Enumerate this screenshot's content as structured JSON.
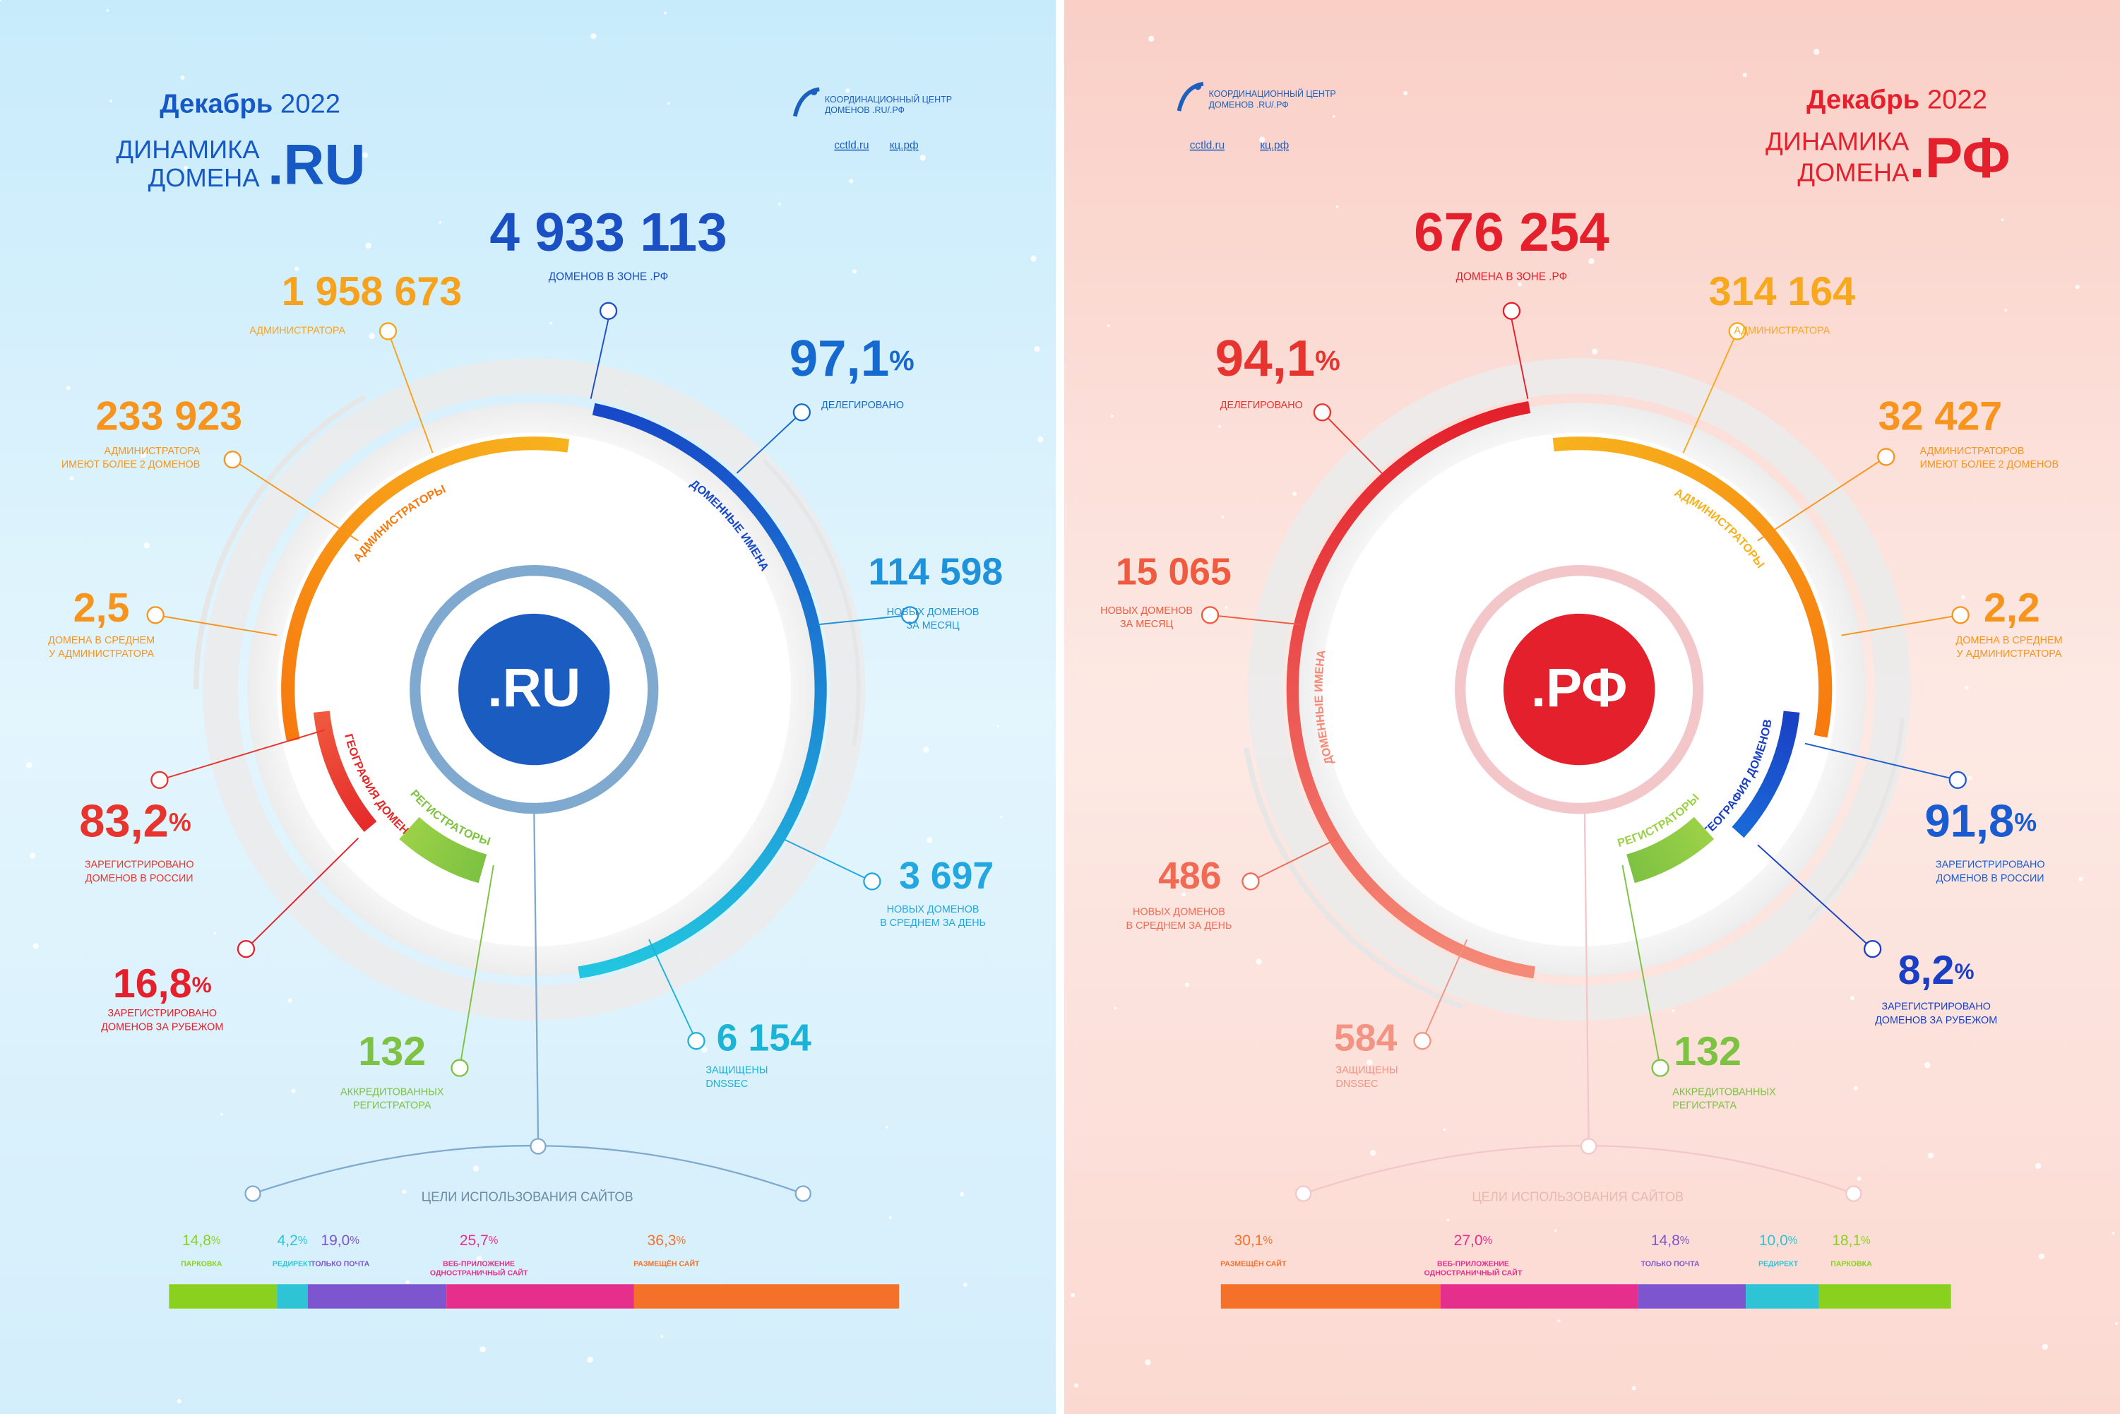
{
  "panels": [
    {
      "month": "Декабрь",
      "year": "2022",
      "title": [
        "ДИНАМИКА",
        "ДОМЕНА"
      ],
      "domain": ".RU",
      "logo": [
        "КООРДИНАЦИОННЫЙ ЦЕНТР",
        "ДОМЕНОВ .RU/.РФ"
      ],
      "links": [
        "cctld.ru",
        "кц.рф"
      ],
      "center": ".RU",
      "color": "#1659c4",
      "total": {
        "value": "4 933 113",
        "label": [
          "ДОМЕНОВ В ЗОНЕ .РФ"
        ],
        "color": "#1b4fc4"
      },
      "rings": [
        "АДМИНИСТРАТОРЫ",
        "ДОМЕННЫЕ ИМЕНА",
        "ГЕОГРАФИЯ ДОМЕНОВ",
        "РЕГИСТРАТОРЫ"
      ],
      "stats": [
        {
          "value": "1 958 673",
          "label": [
            "АДМИНИСТРАТОРА"
          ],
          "color": "#f7a21d"
        },
        {
          "value": "233 923",
          "label": [
            "АДМИНИСТРАТОРА",
            "ИМЕЮТ БОЛЕЕ  2 ДОМЕНОВ"
          ],
          "color": "#f7941d"
        },
        {
          "value": "2,5",
          "label": [
            "ДОМЕНА В СРЕДНЕМ",
            "У АДМИНИСТРАТОРА"
          ],
          "color": "#f7941d"
        },
        {
          "value": "83,2",
          "unit": "%",
          "label": [
            "ЗАРЕГИСТРИРОВАНО",
            "ДОМЕНОВ В РОССИИ"
          ],
          "color": "#e8342e"
        },
        {
          "value": "16,8",
          "unit": "%",
          "label": [
            "ЗАРЕГИСТРИРОВАНО",
            "ДОМЕНОВ ЗА РУБЕЖОМ"
          ],
          "color": "#e3202b"
        },
        {
          "value": "132",
          "label": [
            "АККРЕДИТОВАННЫХ",
            "РЕГИСТРАТОРА"
          ],
          "color": "#7dc242"
        },
        {
          "value": "6 154",
          "label": [
            "ЗАЩИЩЕНЫ",
            "DNSSEC"
          ],
          "color": "#1bb3d6"
        },
        {
          "value": "3 697",
          "label": [
            "НОВЫХ ДОМЕНОВ",
            "В СРЕДНЕМ ЗА ДЕНЬ"
          ],
          "color": "#22a7e0"
        },
        {
          "value": "114 598",
          "label": [
            "НОВЫХ ДОМЕНОВ",
            "ЗА МЕСЯЦ"
          ],
          "color": "#1e93dc"
        },
        {
          "value": "97,1",
          "unit": "%",
          "label": [
            "ДЕЛЕГИРОВАНО"
          ],
          "color": "#1669cf"
        }
      ],
      "usage": {
        "title": "ЦЕЛИ ИСПОЛЬЗОВАНИЯ САЙТОВ",
        "segments": [
          {
            "value": 14.8,
            "label": "14,8",
            "unit": "%",
            "name": [
              "ПАРКОВКА"
            ],
            "color": "#8ad11f"
          },
          {
            "value": 4.2,
            "label": "4,2",
            "unit": "%",
            "name": [
              "РЕДИРЕКТ"
            ],
            "color": "#2ec4d6"
          },
          {
            "value": 19.0,
            "label": "19,0",
            "unit": "%",
            "name": [
              "ТОЛЬКО ПОЧТА"
            ],
            "color": "#7d56cf"
          },
          {
            "value": 25.7,
            "label": "25,7",
            "unit": "%",
            "name": [
              "ВЕБ-ПРИЛОЖЕНИЕ",
              "ОДНОСТРАНИЧНЫЙ САЙТ"
            ],
            "color": "#e62f8c"
          },
          {
            "value": 36.3,
            "label": "36,3",
            "unit": "%",
            "name": [
              "РАЗМЕЩЁН САЙТ"
            ],
            "color": "#f5712a"
          }
        ]
      }
    },
    {
      "month": "Декабрь",
      "year": "2022",
      "title": [
        "ДИНАМИКА",
        "ДОМЕНА"
      ],
      "domain": ".РФ",
      "logo": [
        "КООРДИНАЦИОННЫЙ ЦЕНТР",
        "ДОМЕНОВ .RU/.РФ"
      ],
      "links": [
        "cctld.ru",
        "кц.рф"
      ],
      "center": ".РФ",
      "color": "#e3202b",
      "total": {
        "value": "676 254",
        "label": [
          "ДОМЕНА В ЗОНЕ .РФ"
        ],
        "color": "#e3202b"
      },
      "rings": [
        "ДОМЕННЫЕ ИМЕНА",
        "АДМИНИСТРАТОРЫ",
        "ГЕОГРАФИЯ ДОМЕНОВ",
        "РЕГИСТРАТОРЫ"
      ],
      "stats": [
        {
          "value": "314 164",
          "label": [
            "АДМИНИСТРАТОРА"
          ],
          "color": "#f7a81d"
        },
        {
          "value": "32 427",
          "label": [
            "АДМИНИСТРАТОРОВ",
            "ИМЕЮТ БОЛЕЕ  2 ДОМЕНОВ"
          ],
          "color": "#f7941d"
        },
        {
          "value": "2,2",
          "label": [
            "ДОМЕНА В СРЕДНЕМ",
            "У АДМИНИСТРАТОРА"
          ],
          "color": "#f7941d"
        },
        {
          "value": "91,8",
          "unit": "%",
          "label": [
            "ЗАРЕГИСТРИРОВАНО",
            "ДОМЕНОВ В РОССИИ"
          ],
          "color": "#1a5ccf"
        },
        {
          "value": "8,2",
          "unit": "%",
          "label": [
            "ЗАРЕГИСТРИРОВАНО",
            "ДОМЕНОВ ЗА РУБЕЖОМ"
          ],
          "color": "#1a3fc4"
        },
        {
          "value": "132",
          "label": [
            "АККРЕДИТОВАННЫХ",
            "РЕГИСТРАТА"
          ],
          "color": "#7dc242"
        },
        {
          "value": "584",
          "label": [
            "ЗАЩИЩЕНЫ",
            "DNSSEC"
          ],
          "color": "#f29383"
        },
        {
          "value": "486",
          "label": [
            "НОВЫХ ДОМЕНОВ",
            "В СРЕДНЕМ ЗА ДЕНЬ"
          ],
          "color": "#f06a54"
        },
        {
          "value": "15 065",
          "label": [
            "НОВЫХ ДОМЕНОВ",
            "ЗА МЕСЯЦ"
          ],
          "color": "#f05a3f"
        },
        {
          "value": "94,1",
          "unit": "%",
          "label": [
            "ДЕЛЕГИРОВАНО"
          ],
          "color": "#e8342e"
        }
      ],
      "usage": {
        "title": "ЦЕЛИ ИСПОЛЬЗОВАНИЯ САЙТОВ",
        "segments": [
          {
            "value": 30.1,
            "label": "30,1",
            "unit": "%",
            "name": [
              "РАЗМЕЩЁН САЙТ"
            ],
            "color": "#f5712a"
          },
          {
            "value": 27.0,
            "label": "27,0",
            "unit": "%",
            "name": [
              "ВЕБ-ПРИЛОЖЕНИЕ",
              "ОДНОСТРАНИЧНЫЙ САЙТ"
            ],
            "color": "#e62f8c"
          },
          {
            "value": 14.8,
            "label": "14,8",
            "unit": "%",
            "name": [
              "ТОЛЬКО ПОЧТА"
            ],
            "color": "#7d56cf"
          },
          {
            "value": 10.0,
            "label": "10,0",
            "unit": "%",
            "name": [
              "РЕДИРЕКТ"
            ],
            "color": "#2ec4d6"
          },
          {
            "value": 18.1,
            "label": "18,1",
            "unit": "%",
            "name": [
              "ПАРКОВКА"
            ],
            "color": "#8ad11f"
          }
        ]
      }
    }
  ]
}
